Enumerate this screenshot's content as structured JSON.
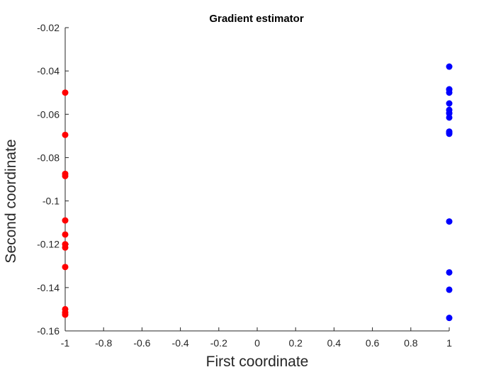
{
  "chart_data": {
    "type": "scatter",
    "title": "Gradient estimator",
    "xlabel": "First coordinate",
    "ylabel": "Second coordinate",
    "xlim": [
      -1,
      1
    ],
    "ylim": [
      -0.16,
      -0.02
    ],
    "xticks": [
      -1,
      -0.8,
      -0.6,
      -0.4,
      -0.2,
      0,
      0.2,
      0.4,
      0.6,
      0.8,
      1
    ],
    "xtick_labels": [
      "-1",
      "-0.8",
      "-0.6",
      "-0.4",
      "-0.2",
      "0",
      "0.2",
      "0.4",
      "0.6",
      "0.8",
      "1"
    ],
    "yticks": [
      -0.02,
      -0.04,
      -0.06,
      -0.08,
      -0.1,
      -0.12,
      -0.14,
      -0.16
    ],
    "ytick_labels": [
      "-0.02",
      "-0.04",
      "-0.06",
      "-0.08",
      "-0.1",
      "-0.12",
      "-0.14",
      "-0.16"
    ],
    "grid": false,
    "box": false,
    "series": [
      {
        "color": "#ff0000",
        "x": [
          -1,
          -1,
          -1,
          -1,
          -1,
          -1,
          -1,
          -1,
          -1,
          -1,
          -1,
          -1
        ],
        "y": [
          -0.05,
          -0.0695,
          -0.0875,
          -0.0885,
          -0.109,
          -0.1155,
          -0.12,
          -0.1215,
          -0.1305,
          -0.15,
          -0.1515,
          -0.1525
        ]
      },
      {
        "color": "#0000ff",
        "x": [
          1,
          1,
          1,
          1,
          1,
          1,
          1,
          1,
          1,
          1,
          1,
          1,
          1,
          1,
          1,
          1
        ],
        "y": [
          -0.038,
          -0.0485,
          -0.05,
          -0.055,
          -0.058,
          -0.0595,
          -0.0615,
          -0.068,
          -0.069,
          -0.1095,
          -0.133,
          -0.141,
          -0.154,
          -0.0485,
          -0.0595,
          -0.0685
        ]
      }
    ]
  }
}
